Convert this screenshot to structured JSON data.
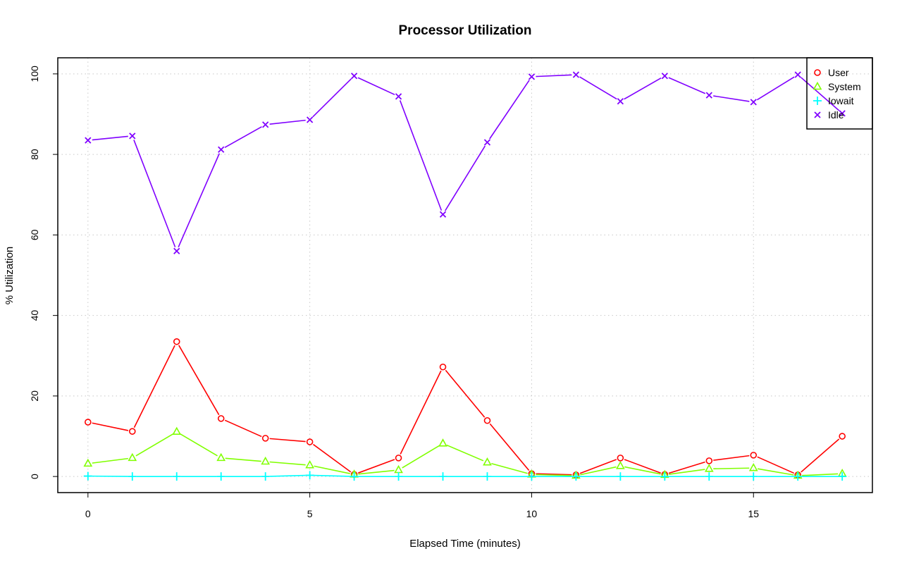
{
  "chart_data": {
    "type": "line",
    "title": "Processor Utilization",
    "xlabel": "Elapsed Time (minutes)",
    "ylabel": "% Utilization",
    "xlim": [
      -0.68,
      17.68
    ],
    "ylim": [
      -4,
      104
    ],
    "x_ticks": [
      "0",
      "5",
      "10",
      "15"
    ],
    "y_ticks": [
      "0",
      "20",
      "40",
      "60",
      "80",
      "100"
    ],
    "grid": true,
    "legend_position": "top-right",
    "x": [
      0,
      1,
      2,
      3,
      4,
      5,
      6,
      7,
      8,
      9,
      10,
      11,
      12,
      13,
      14,
      15,
      16,
      17
    ],
    "series": [
      {
        "name": "User",
        "color": "#ff0000",
        "marker": "circle",
        "values": [
          13.5,
          11.2,
          33.5,
          14.4,
          9.5,
          8.6,
          0.5,
          4.6,
          27.2,
          13.9,
          0.7,
          0.4,
          4.6,
          0.5,
          3.9,
          5.3,
          0.4,
          10.0
        ]
      },
      {
        "name": "System",
        "color": "#80ff00",
        "marker": "triangle",
        "values": [
          3.2,
          4.6,
          11.1,
          4.6,
          3.7,
          2.8,
          0.5,
          1.6,
          8.2,
          3.5,
          0.5,
          0.2,
          2.6,
          0.4,
          1.9,
          2.1,
          0.2,
          0.7
        ]
      },
      {
        "name": "Iowait",
        "color": "#00ffff",
        "marker": "plus",
        "values": [
          0.1,
          0,
          0,
          0,
          0,
          0.3,
          0,
          0,
          0,
          0,
          0,
          0,
          0,
          0,
          0,
          0,
          0,
          0
        ]
      },
      {
        "name": "Idle",
        "color": "#8000ff",
        "marker": "cross",
        "values": [
          83.5,
          84.6,
          56.0,
          81.2,
          87.4,
          88.6,
          99.5,
          94.4,
          65.1,
          83.0,
          99.3,
          99.8,
          93.2,
          99.5,
          94.7,
          93.0,
          99.8,
          90.2
        ]
      }
    ]
  }
}
